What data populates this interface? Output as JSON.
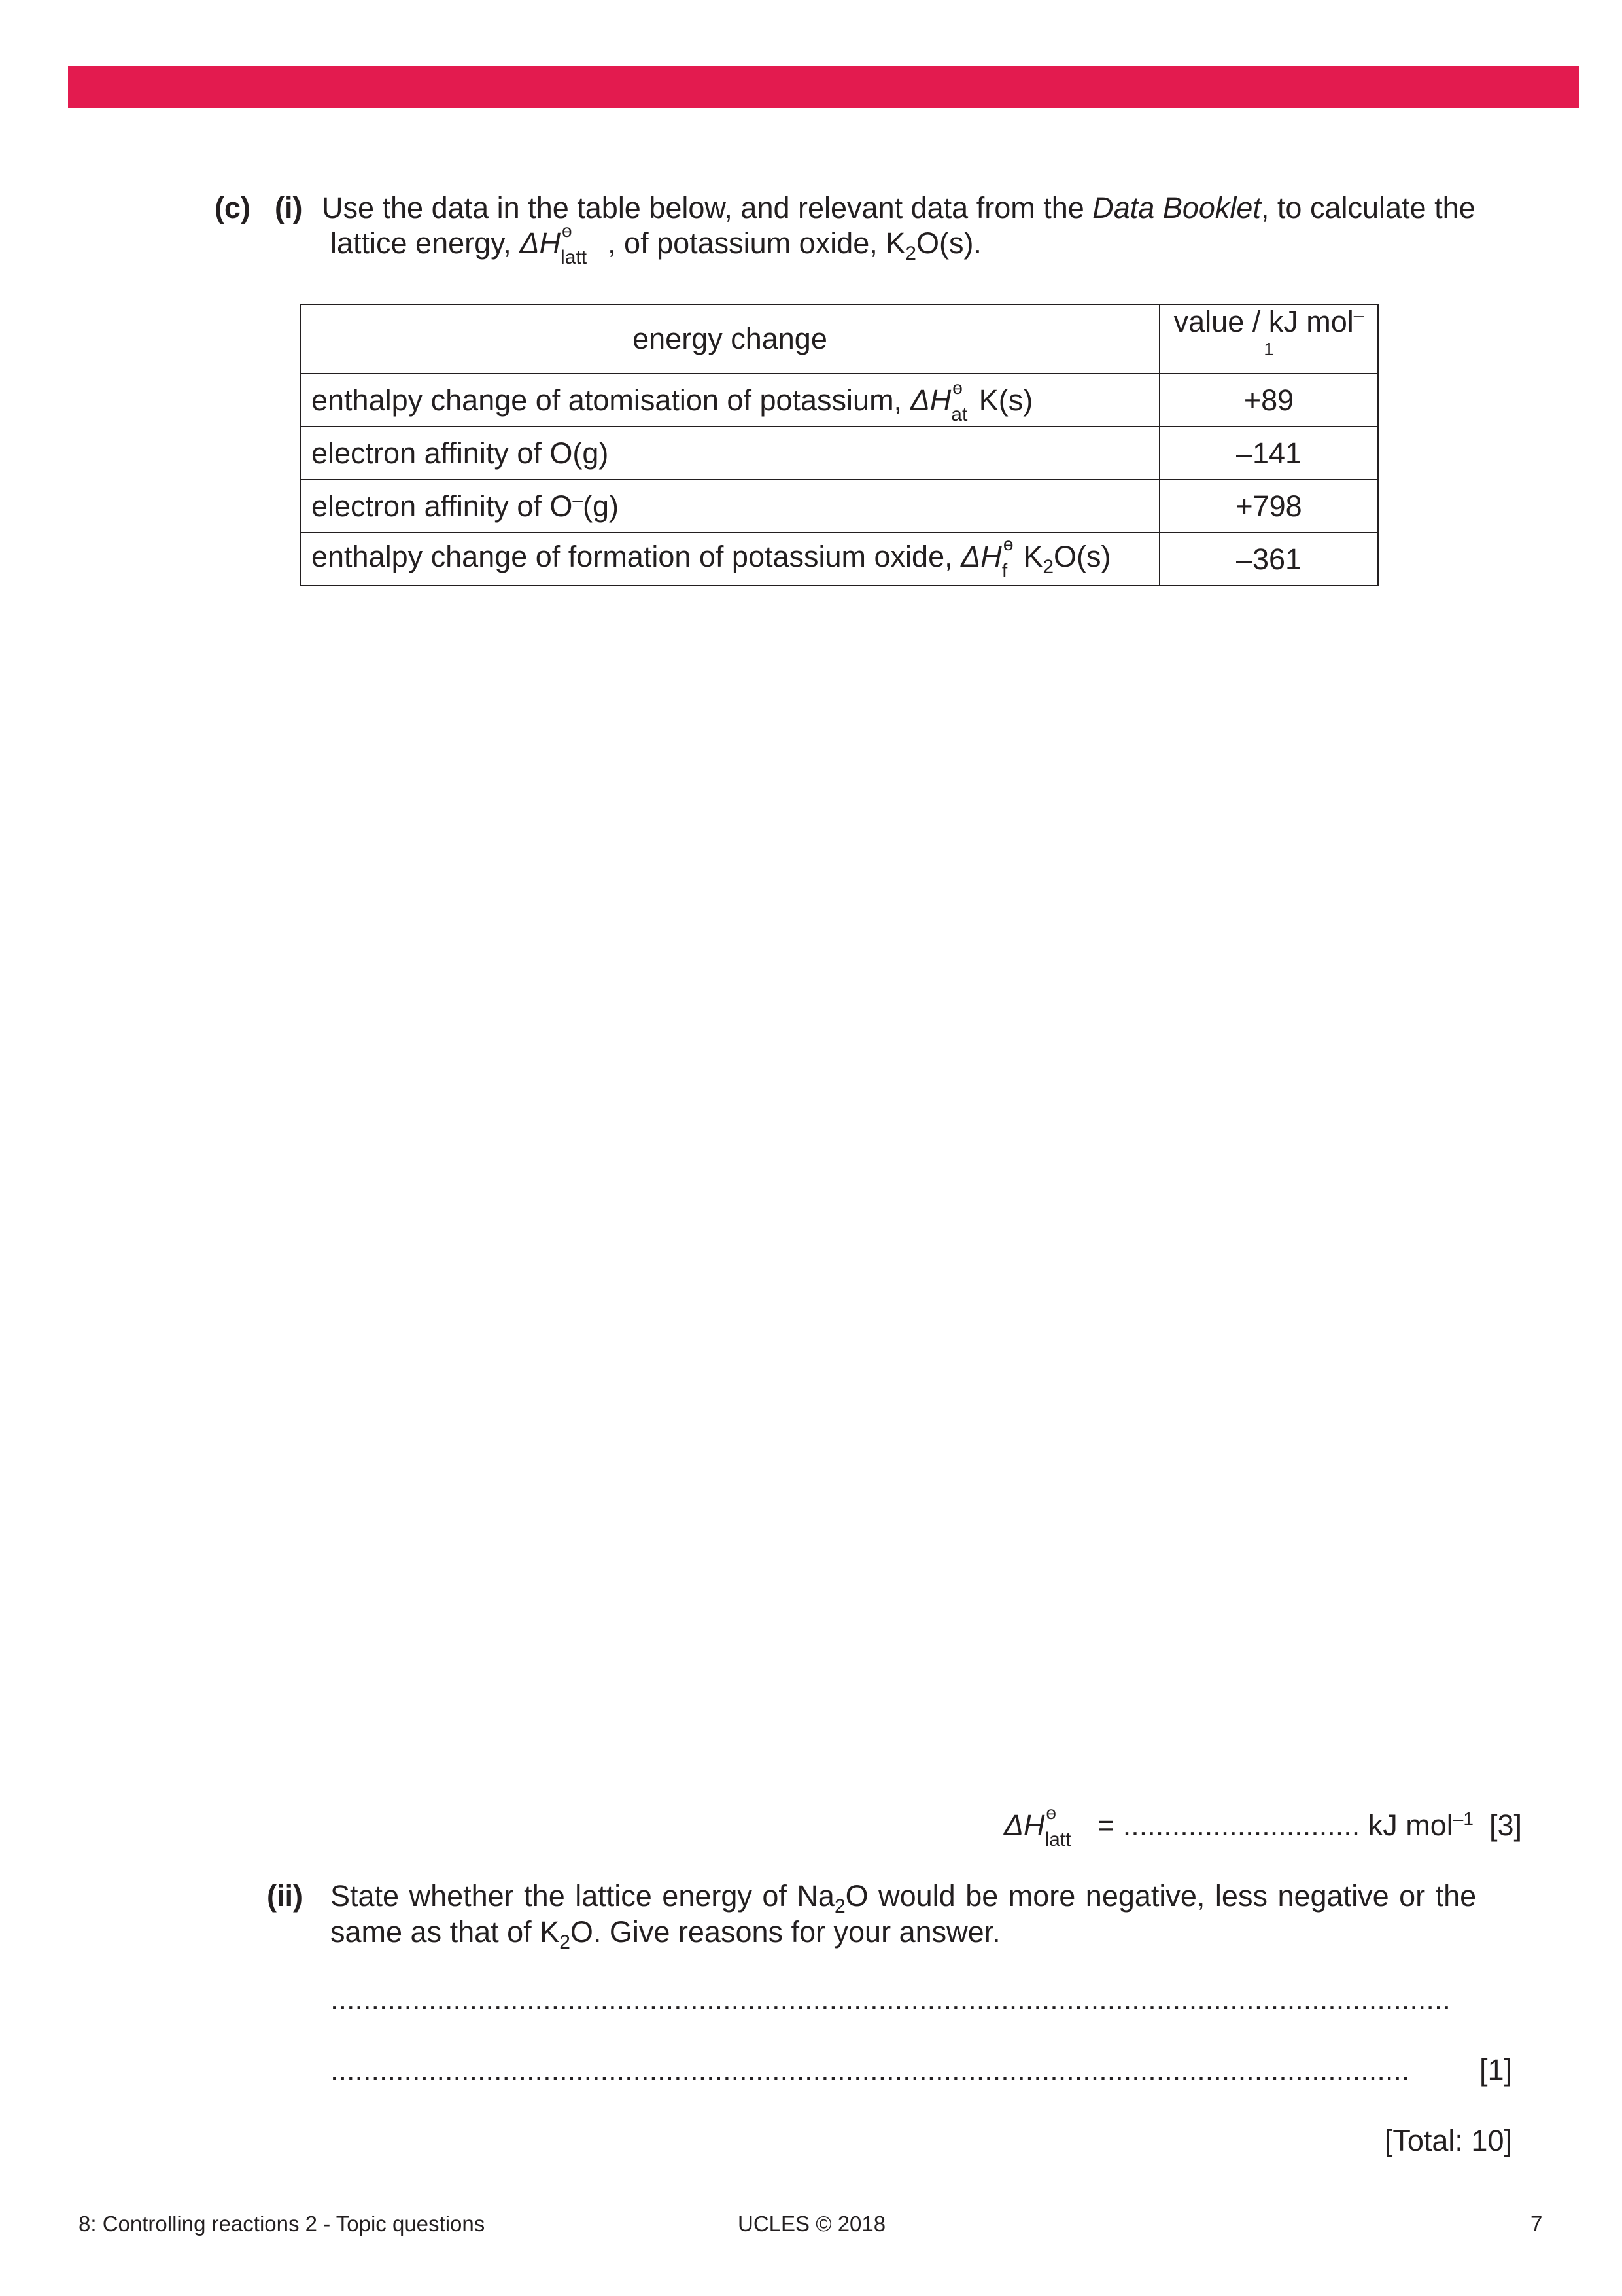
{
  "header": {
    "bar_color": "#e31b4f"
  },
  "question_c": {
    "label": "(c)",
    "part_i_label": "(i)",
    "line1_a": "Use the data in the table below, and relevant data from the ",
    "line1_italic": "Data Booklet",
    "line1_b": ", to calculate the",
    "line2_a": "lattice energy, ",
    "line2_b": ", of potassium oxide, K",
    "line2_c": "O(s)."
  },
  "table": {
    "headers": [
      "energy change",
      "value / kJ mol"
    ],
    "header_sup": "–1",
    "rows": [
      {
        "label": "enthalpy change of atomisation of potassium, ",
        "symbol_sub": "at",
        "suffix": " K(s)",
        "value": "+89"
      },
      {
        "label": "electron affinity of O(g)",
        "value": "–141"
      },
      {
        "label": "electron affinity of O",
        "sup": "–",
        "suffix": "(g)",
        "value": "+798"
      },
      {
        "label": "enthalpy change of formation of potassium oxide, ",
        "symbol_sub": "f",
        "suffix": " K",
        "suffix2": "O(s)",
        "value": "–361"
      }
    ]
  },
  "symbols": {
    "delta_h": "ΔH",
    "standard": "ө",
    "latt": "latt",
    "two": "2"
  },
  "answer_i": {
    "equals": " = ............................. kJ mol",
    "sup": "–1",
    "marks": "[3]"
  },
  "part_ii": {
    "label": "(ii)",
    "line1_a": "State whether the lattice energy of Na",
    "line1_b": "O would be more negative, less negative or the",
    "line2_a": "same as that of K",
    "line2_b": "O. Give reasons for your answer.",
    "answer_line1": ".........................................................................................................................................",
    "answer_line2": "....................................................................................................................................",
    "marks": "[1]"
  },
  "total": "[Total: 10]",
  "footer": {
    "left": "8: Controlling reactions 2 - Topic questions",
    "center": "UCLES © 2018",
    "page": "7"
  }
}
